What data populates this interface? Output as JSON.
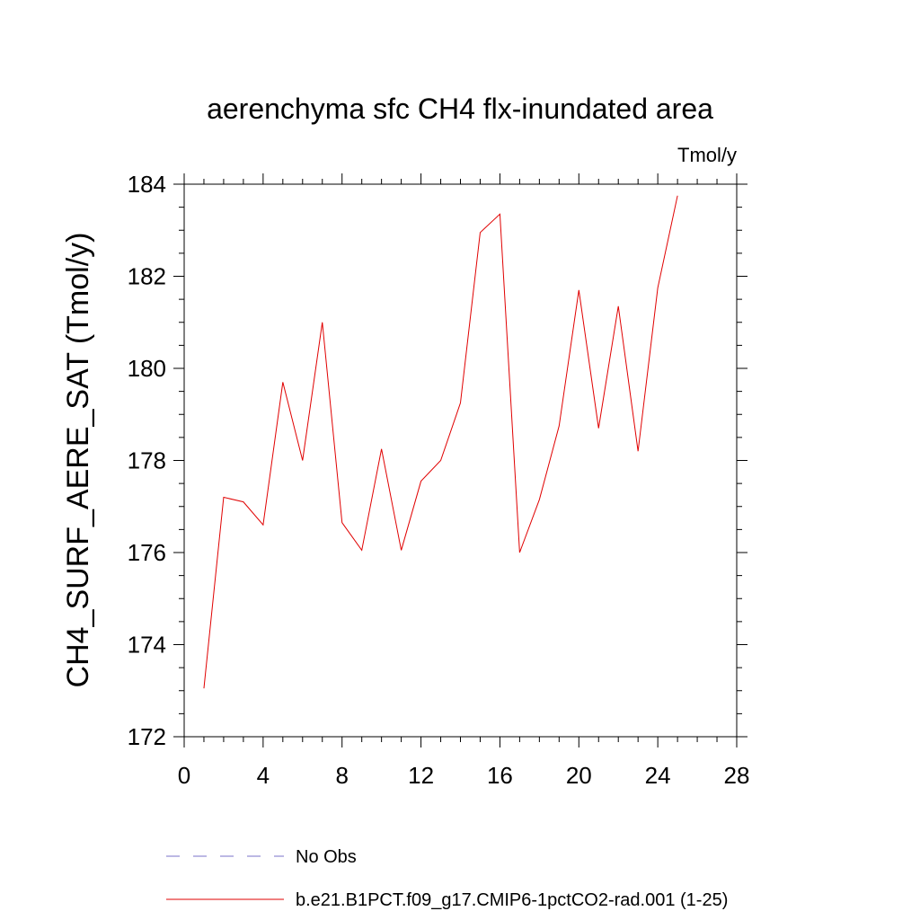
{
  "chart_data": {
    "type": "line",
    "title": "aerenchyma sfc CH4 flx-inundated area",
    "units_label": "Tmol/y",
    "ylabel": "CH4_SURF_AERE_SAT  (Tmol/y)",
    "xlabel": "",
    "xlim": [
      0,
      28
    ],
    "ylim": [
      172,
      184
    ],
    "x_ticks": [
      0,
      4,
      8,
      12,
      16,
      20,
      24,
      28
    ],
    "x_tick_labels": [
      "0",
      "4",
      "8",
      "12",
      "16",
      "20",
      "24",
      "28"
    ],
    "y_ticks": [
      172,
      174,
      176,
      178,
      180,
      182,
      184
    ],
    "y_tick_labels": [
      "172",
      "174",
      "176",
      "178",
      "180",
      "182",
      "184"
    ],
    "grid": false,
    "legend_placement": "bottom",
    "series": [
      {
        "name": "b.e21.B1PCT.f09_g17.CMIP6-1pctCO2-rad.001 (1-25)",
        "color": "#e00000",
        "x": [
          1,
          2,
          3,
          4,
          5,
          6,
          7,
          8,
          9,
          10,
          11,
          12,
          13,
          14,
          15,
          16,
          17,
          18,
          19,
          20,
          21,
          22,
          23,
          24,
          25
        ],
        "y": [
          173.05,
          177.2,
          177.1,
          176.6,
          179.7,
          178.0,
          181.0,
          176.65,
          176.05,
          178.25,
          176.05,
          177.55,
          178.0,
          179.25,
          182.95,
          183.35,
          176.0,
          177.15,
          178.75,
          181.7,
          178.7,
          181.35,
          178.2,
          181.75,
          183.75
        ]
      }
    ],
    "legend": [
      {
        "label": "No Obs",
        "style": "dashed",
        "color": "#7a70c8"
      },
      {
        "label": "b.e21.B1PCT.f09_g17.CMIP6-1pctCO2-rad.001 (1-25)",
        "style": "solid",
        "color": "#e00000"
      }
    ]
  }
}
